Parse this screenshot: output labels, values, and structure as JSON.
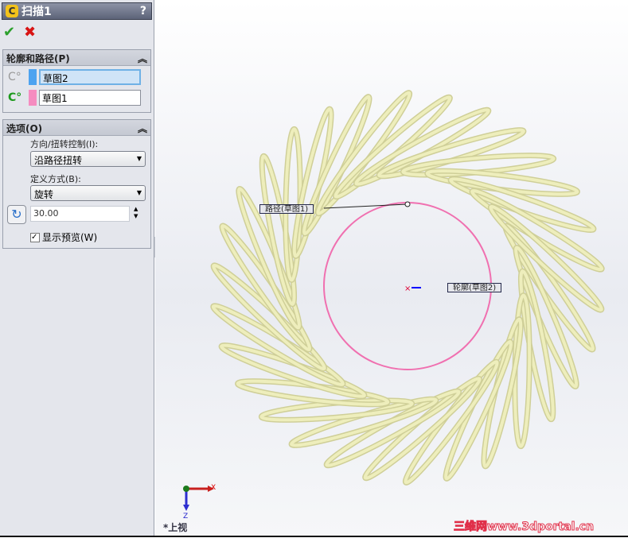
{
  "panel": {
    "title": "扫描1",
    "help": "?",
    "ok_icon": "check-icon",
    "cancel_icon": "x-icon",
    "profile_path": {
      "header": "轮廓和路径(P)",
      "profile": "草图2",
      "path": "草图1",
      "profile_color": "#4da3f0",
      "path_color": "#f58cc0"
    },
    "options": {
      "header": "选项(O)",
      "twist_label": "方向/扭转控制(I):",
      "twist_value": "沿路径扭转",
      "define_label": "定义方式(B):",
      "define_value": "旋转",
      "angle": "30.00",
      "preview_label": "显示预览(W)",
      "preview_checked": true
    }
  },
  "viewport": {
    "path_callout": "路径(草图1)",
    "profile_callout": "轮廓(草图2)",
    "view_name": "*上视",
    "axis_x": "X",
    "axis_z": "Z",
    "watermark": "三维网www.3dportal.cn",
    "path_color": "#f070b0",
    "spring_color": "#eeeebc"
  }
}
